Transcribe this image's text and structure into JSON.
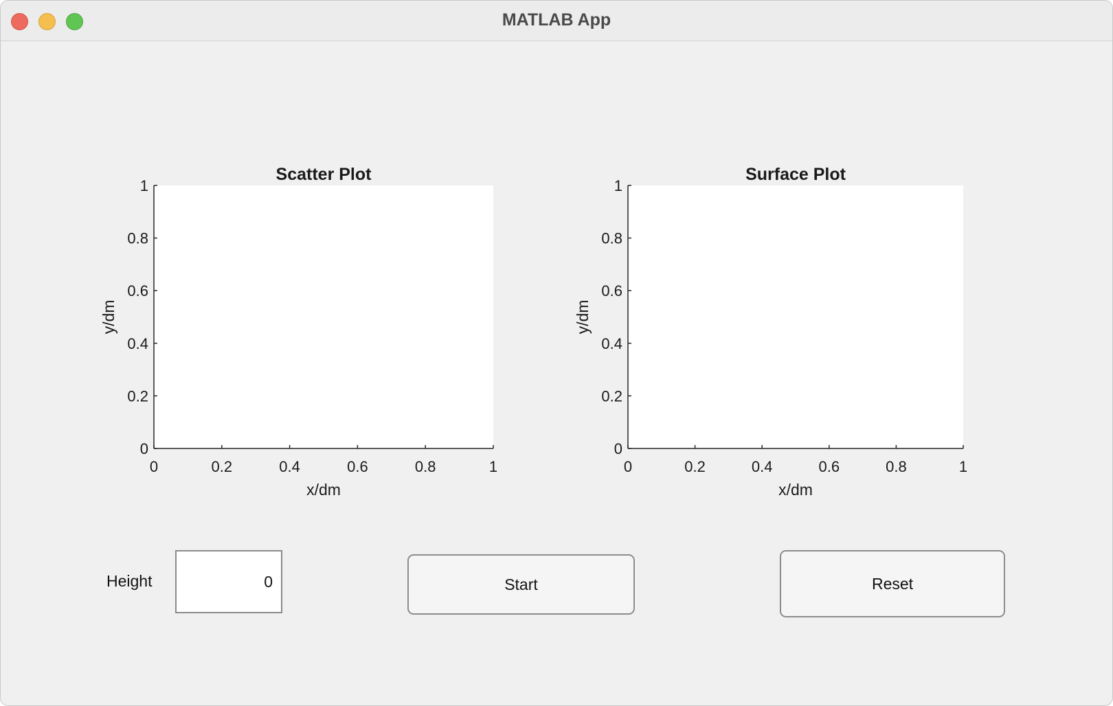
{
  "window": {
    "title": "MATLAB App"
  },
  "axes": [
    {
      "id": "scatter",
      "title": "Scatter Plot",
      "xlabel": "x/dm",
      "ylabel": "y/dm",
      "xticks": [
        "0",
        "0.2",
        "0.4",
        "0.6",
        "0.8",
        "1"
      ],
      "yticks": [
        "0",
        "0.2",
        "0.4",
        "0.6",
        "0.8",
        "1"
      ]
    },
    {
      "id": "surface",
      "title": "Surface Plot",
      "xlabel": "x/dm",
      "ylabel": "y/dm",
      "xticks": [
        "0",
        "0.2",
        "0.4",
        "0.6",
        "0.8",
        "1"
      ],
      "yticks": [
        "0",
        "0.2",
        "0.4",
        "0.6",
        "0.8",
        "1"
      ]
    }
  ],
  "chart_data": [
    {
      "type": "scatter",
      "title": "Scatter Plot",
      "xlabel": "x/dm",
      "ylabel": "y/dm",
      "xlim": [
        0,
        1
      ],
      "ylim": [
        0,
        1
      ],
      "series": []
    },
    {
      "type": "heatmap",
      "title": "Surface Plot",
      "xlabel": "x/dm",
      "ylabel": "y/dm",
      "xlim": [
        0,
        1
      ],
      "ylim": [
        0,
        1
      ],
      "series": []
    }
  ],
  "controls": {
    "height_label": "Height",
    "height_value": "0",
    "start_label": "Start",
    "reset_label": "Reset"
  },
  "colors": {
    "window_bg": "#f0f0f0",
    "axes_bg": "#ffffff",
    "close": "#ec6a5e",
    "minimize": "#f4bf4f",
    "maximize": "#61c554"
  }
}
